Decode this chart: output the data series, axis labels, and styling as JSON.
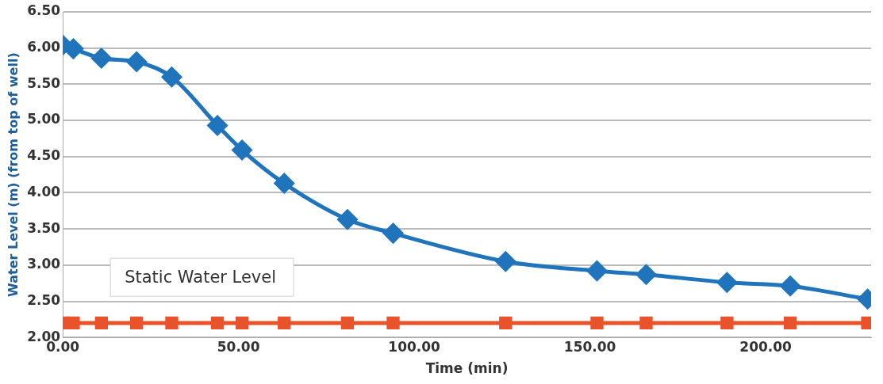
{
  "chart_data": {
    "type": "line",
    "xlabel": "Time (min)",
    "ylabel": "Water Level (m) (from top of well)",
    "xlim": [
      0,
      230
    ],
    "xticks": [
      {
        "value": 0,
        "label": "0.00"
      },
      {
        "value": 50,
        "label": "50.00"
      },
      {
        "value": 100,
        "label": "100.00"
      },
      {
        "value": 150,
        "label": "150.00"
      },
      {
        "value": 200,
        "label": "200.00"
      }
    ],
    "ylim": [
      2,
      6.5
    ],
    "yticks": [
      {
        "value": 2,
        "label": "2.00"
      },
      {
        "value": 2.5,
        "label": "2.50"
      },
      {
        "value": 3,
        "label": "3.00"
      },
      {
        "value": 3.5,
        "label": "3.50"
      },
      {
        "value": 4,
        "label": "4.00"
      },
      {
        "value": 4.5,
        "label": "4.50"
      },
      {
        "value": 5,
        "label": "5.00"
      },
      {
        "value": 5.5,
        "label": "5.50"
      },
      {
        "value": 6,
        "label": "6.00"
      },
      {
        "value": 6.5,
        "label": "6.50"
      }
    ],
    "grid": "y",
    "legend": false,
    "series": [
      {
        "color": "#1f74bb",
        "marker": "diamond",
        "x": [
          0,
          3,
          11,
          21,
          31,
          44,
          51,
          63,
          81,
          94,
          126,
          152,
          166,
          189,
          207,
          229
        ],
        "values": [
          6.04,
          5.99,
          5.86,
          5.81,
          5.6,
          4.93,
          4.59,
          4.13,
          3.63,
          3.44,
          3.05,
          2.92,
          2.87,
          2.76,
          2.71,
          2.53
        ]
      },
      {
        "color": "#e8532b",
        "marker": "square",
        "x": [
          0,
          3,
          11,
          21,
          31,
          44,
          51,
          63,
          81,
          94,
          126,
          152,
          166,
          189,
          207,
          229
        ],
        "values": [
          2.2,
          2.2,
          2.2,
          2.2,
          2.2,
          2.2,
          2.2,
          2.2,
          2.2,
          2.2,
          2.2,
          2.2,
          2.2,
          2.2,
          2.2,
          2.2
        ]
      }
    ],
    "annotations": [
      "Static Water Level"
    ]
  }
}
